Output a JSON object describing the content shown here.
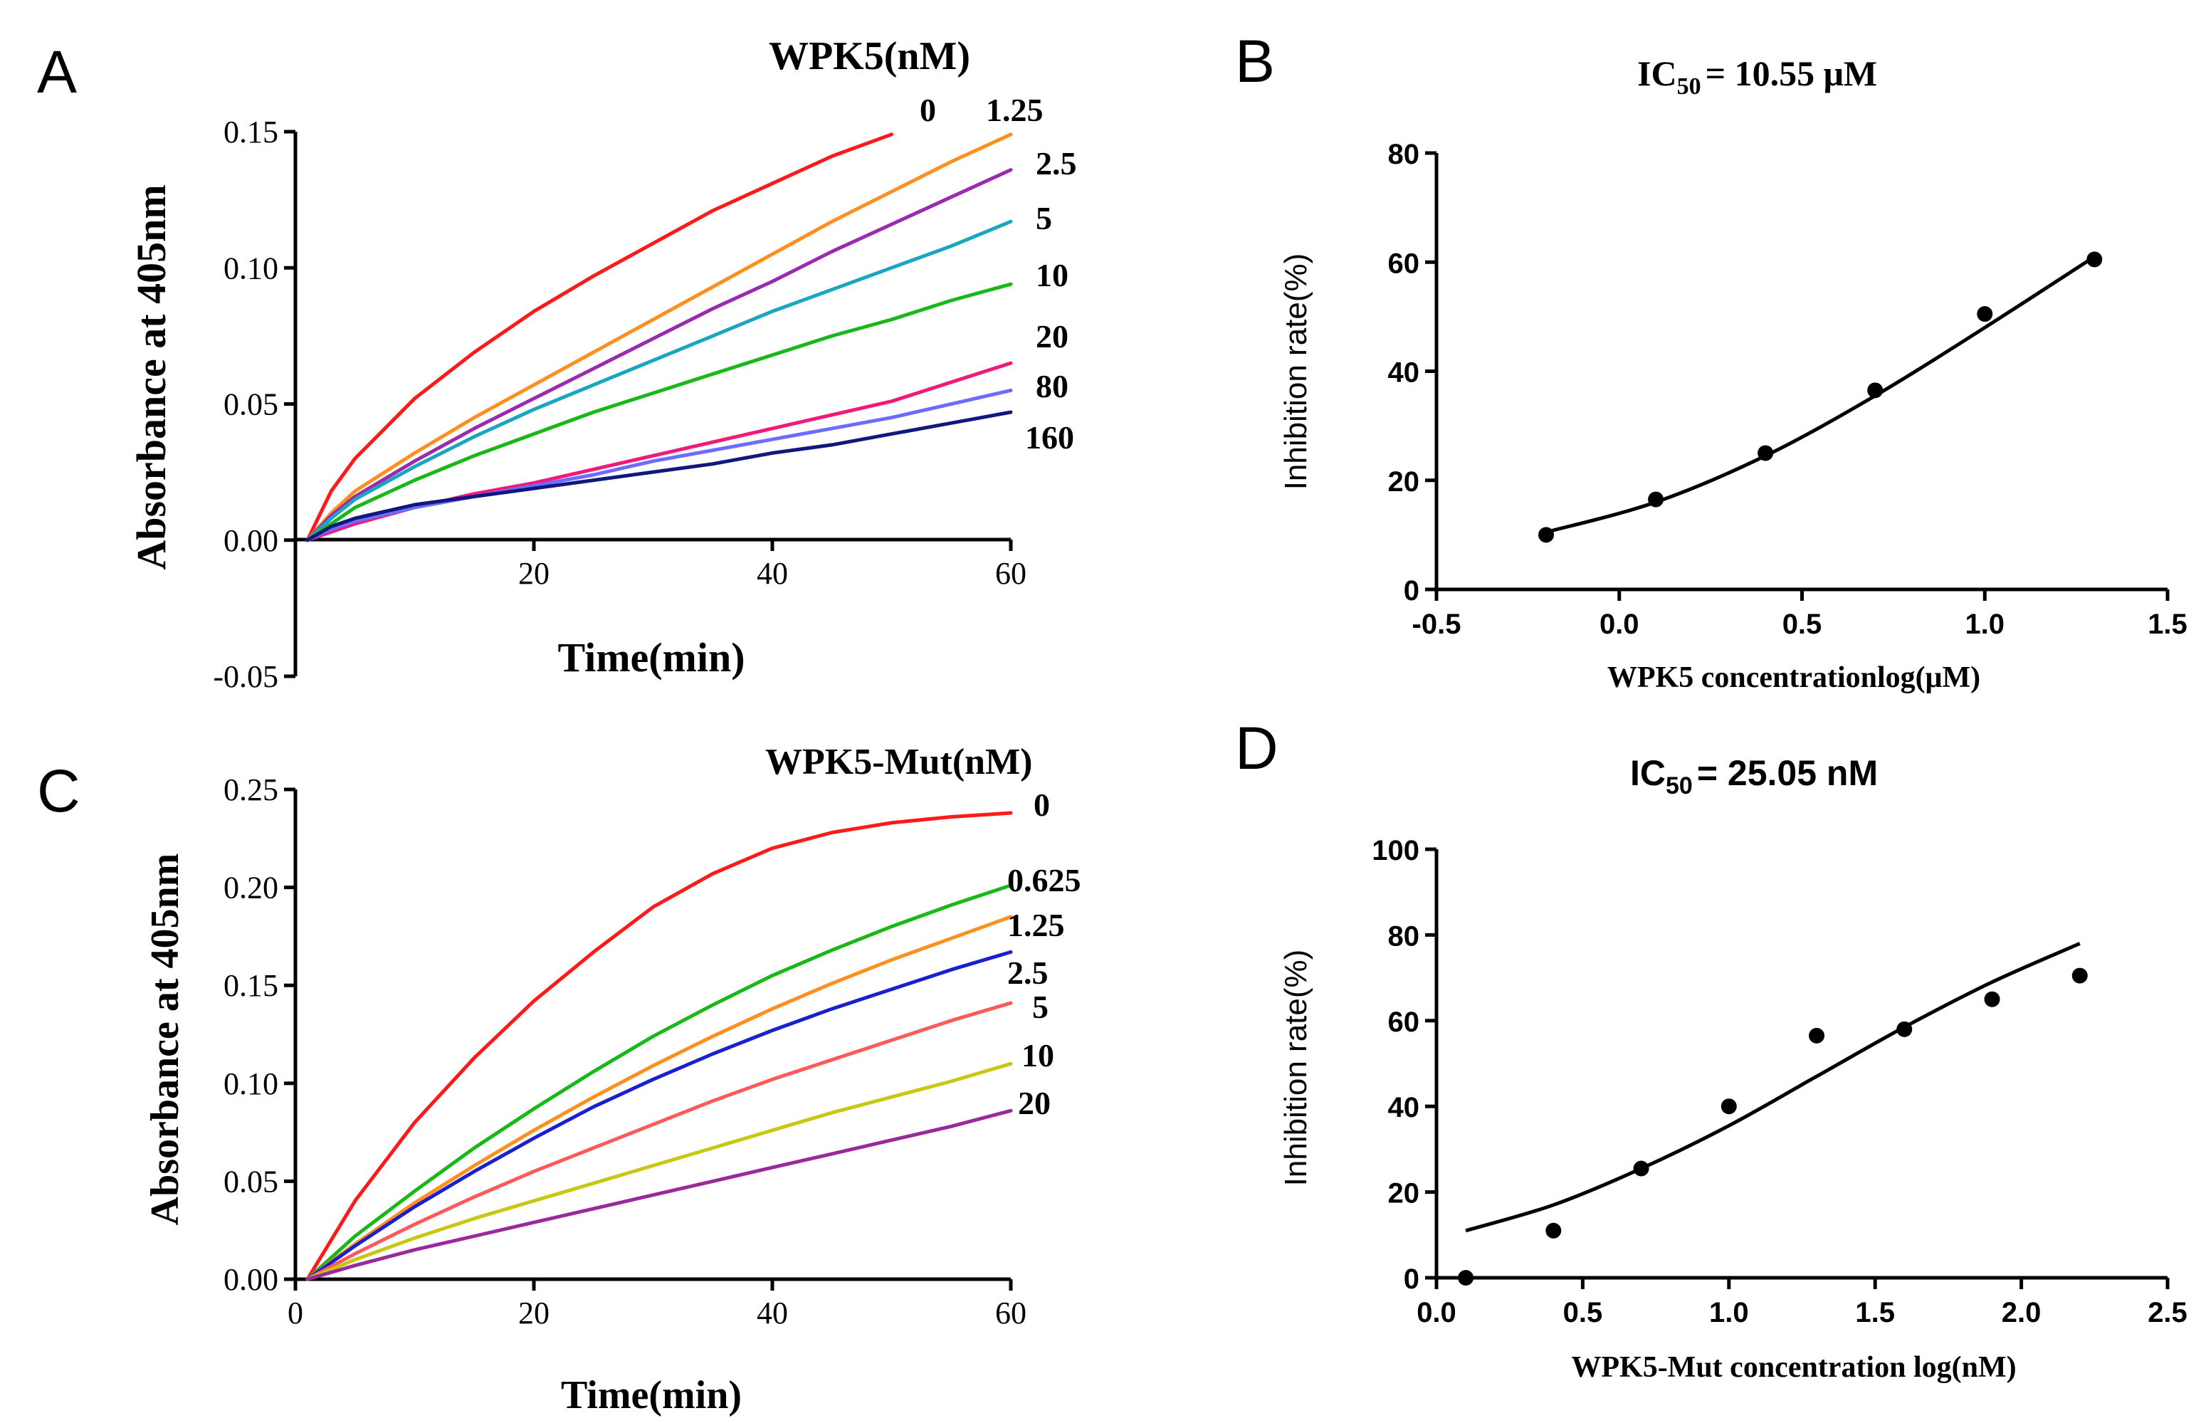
{
  "chart_data": [
    {
      "panel": "A",
      "type": "line",
      "legend_title": "WPK5(nM)",
      "xlabel": "Time(min)",
      "ylabel": "Absorbance at 405nm",
      "xlim": [
        0,
        60
      ],
      "ylim": [
        -0.05,
        0.15
      ],
      "xticks": [
        20,
        40,
        60
      ],
      "xtick_labels": [
        "20",
        "40",
        "60"
      ],
      "yticks": [
        -0.05,
        0,
        0.05,
        0.1,
        0.15
      ],
      "ytick_labels": [
        "-0.05",
        "0.00",
        "0.05",
        "0.10",
        "0.15"
      ],
      "series": [
        {
          "name": "0",
          "color": "#ff1a1a",
          "x": [
            1,
            3,
            5,
            10,
            15,
            20,
            25,
            30,
            35,
            40,
            45,
            50
          ],
          "values": [
            0,
            0.018,
            0.03,
            0.052,
            0.069,
            0.084,
            0.097,
            0.109,
            0.121,
            0.131,
            0.141,
            0.149
          ]
        },
        {
          "name": "1.25",
          "color": "#ff9020",
          "x": [
            1,
            3,
            5,
            10,
            15,
            20,
            25,
            30,
            35,
            40,
            45,
            50,
            55,
            60
          ],
          "values": [
            0,
            0.01,
            0.018,
            0.032,
            0.045,
            0.057,
            0.069,
            0.081,
            0.093,
            0.105,
            0.117,
            0.128,
            0.139,
            0.149
          ]
        },
        {
          "name": "2.5",
          "color": "#9a2ab0",
          "x": [
            1,
            3,
            5,
            10,
            15,
            20,
            25,
            30,
            35,
            40,
            45,
            50,
            55,
            60
          ],
          "values": [
            0,
            0.009,
            0.016,
            0.029,
            0.041,
            0.052,
            0.063,
            0.074,
            0.085,
            0.095,
            0.106,
            0.116,
            0.126,
            0.136
          ]
        },
        {
          "name": "5",
          "color": "#1aa6c0",
          "x": [
            1,
            3,
            5,
            10,
            15,
            20,
            25,
            30,
            35,
            40,
            45,
            50,
            55,
            60
          ],
          "values": [
            0,
            0.008,
            0.015,
            0.027,
            0.038,
            0.048,
            0.057,
            0.066,
            0.075,
            0.084,
            0.092,
            0.1,
            0.108,
            0.117
          ]
        },
        {
          "name": "10",
          "color": "#18b818",
          "x": [
            1,
            3,
            5,
            10,
            15,
            20,
            25,
            30,
            35,
            40,
            45,
            50,
            55,
            60
          ],
          "values": [
            0,
            0.006,
            0.012,
            0.022,
            0.031,
            0.039,
            0.047,
            0.054,
            0.061,
            0.068,
            0.075,
            0.081,
            0.088,
            0.094
          ]
        },
        {
          "name": "20",
          "color": "#f01a7a",
          "x": [
            1,
            3,
            5,
            10,
            15,
            20,
            25,
            30,
            35,
            40,
            45,
            50,
            55,
            60
          ],
          "values": [
            0,
            0.003,
            0.006,
            0.012,
            0.017,
            0.021,
            0.026,
            0.031,
            0.036,
            0.041,
            0.046,
            0.051,
            0.058,
            0.065
          ]
        },
        {
          "name": "80",
          "color": "#6c6cff",
          "x": [
            1,
            3,
            5,
            10,
            15,
            20,
            25,
            30,
            35,
            40,
            45,
            50,
            55,
            60
          ],
          "values": [
            0,
            0.004,
            0.007,
            0.012,
            0.016,
            0.02,
            0.024,
            0.029,
            0.033,
            0.037,
            0.041,
            0.045,
            0.05,
            0.055
          ]
        },
        {
          "name": "160",
          "color": "#101880",
          "x": [
            1,
            3,
            5,
            10,
            15,
            20,
            25,
            30,
            35,
            40,
            45,
            50,
            55,
            60
          ],
          "values": [
            0,
            0.005,
            0.008,
            0.013,
            0.016,
            0.019,
            0.022,
            0.025,
            0.028,
            0.032,
            0.035,
            0.039,
            0.043,
            0.047
          ]
        }
      ]
    },
    {
      "panel": "B",
      "type": "scatter",
      "title": "IC",
      "title_sub": "50",
      "title_rest": "= 10.55 μM",
      "xlabel": "WPK5 concentrationlog(μM)",
      "ylabel": "Inhibition rate(%)",
      "xlim": [
        -0.5,
        1.5
      ],
      "ylim": [
        0,
        80
      ],
      "xticks": [
        -0.5,
        0,
        0.5,
        1,
        1.5
      ],
      "xtick_labels": [
        "-0.5",
        "0.0",
        "0.5",
        "1.0",
        "1.5"
      ],
      "yticks": [
        0,
        20,
        40,
        60,
        80
      ],
      "ytick_labels": [
        "0",
        "20",
        "40",
        "60",
        "80"
      ],
      "points": {
        "x": [
          -0.2,
          0.1,
          0.4,
          0.7,
          1.0,
          1.3
        ],
        "y": [
          10,
          16.5,
          25,
          36.5,
          50.5,
          60.5
        ]
      },
      "fit": {
        "x": [
          -0.2,
          0.1,
          0.4,
          0.7,
          1.0,
          1.3
        ],
        "y": [
          10.5,
          16.0,
          24.5,
          35.5,
          48.0,
          61.0
        ]
      }
    },
    {
      "panel": "C",
      "type": "line",
      "legend_title": "WPK5-Mut(nM)",
      "xlabel": "Time(min)",
      "ylabel": "Absorbance at 405nm",
      "xlim": [
        0,
        60
      ],
      "ylim": [
        0,
        0.25
      ],
      "xticks": [
        0,
        20,
        40,
        60
      ],
      "xtick_labels": [
        "0",
        "20",
        "40",
        "60"
      ],
      "yticks": [
        0,
        0.05,
        0.1,
        0.15,
        0.2,
        0.25
      ],
      "ytick_labels": [
        "0.00",
        "0.05",
        "0.10",
        "0.15",
        "0.20",
        "0.25"
      ],
      "series": [
        {
          "name": "0",
          "color": "#ff1a1a",
          "x": [
            1,
            5,
            10,
            15,
            20,
            25,
            30,
            35,
            40,
            45,
            50,
            55,
            60
          ],
          "values": [
            0,
            0.04,
            0.08,
            0.113,
            0.142,
            0.167,
            0.19,
            0.207,
            0.22,
            0.228,
            0.233,
            0.236,
            0.238
          ]
        },
        {
          "name": "0.625",
          "color": "#18b818",
          "x": [
            1,
            5,
            10,
            15,
            20,
            25,
            30,
            35,
            40,
            45,
            50,
            55,
            60
          ],
          "values": [
            0,
            0.022,
            0.045,
            0.067,
            0.087,
            0.106,
            0.124,
            0.14,
            0.155,
            0.168,
            0.18,
            0.191,
            0.201
          ]
        },
        {
          "name": "1.25",
          "color": "#ff9020",
          "x": [
            1,
            5,
            10,
            15,
            20,
            25,
            30,
            35,
            40,
            45,
            50,
            55,
            60
          ],
          "values": [
            0,
            0.018,
            0.039,
            0.058,
            0.076,
            0.093,
            0.109,
            0.124,
            0.138,
            0.151,
            0.163,
            0.174,
            0.185
          ]
        },
        {
          "name": "2.5",
          "color": "#1a20d0",
          "x": [
            1,
            5,
            10,
            15,
            20,
            25,
            30,
            35,
            40,
            45,
            50,
            55,
            60
          ],
          "values": [
            0,
            0.017,
            0.037,
            0.055,
            0.072,
            0.088,
            0.102,
            0.115,
            0.127,
            0.138,
            0.148,
            0.158,
            0.167
          ]
        },
        {
          "name": "5",
          "color": "#ff5a5a",
          "x": [
            1,
            5,
            10,
            15,
            20,
            25,
            30,
            35,
            40,
            45,
            50,
            55,
            60
          ],
          "values": [
            0,
            0.013,
            0.028,
            0.042,
            0.055,
            0.067,
            0.079,
            0.091,
            0.102,
            0.112,
            0.122,
            0.132,
            0.141
          ]
        },
        {
          "name": "10",
          "color": "#c8c814",
          "x": [
            1,
            5,
            10,
            15,
            20,
            25,
            30,
            35,
            40,
            45,
            50,
            55,
            60
          ],
          "values": [
            0,
            0.01,
            0.021,
            0.031,
            0.04,
            0.049,
            0.058,
            0.067,
            0.076,
            0.085,
            0.093,
            0.101,
            0.11
          ]
        },
        {
          "name": "20",
          "color": "#9a2a9a",
          "x": [
            1,
            5,
            10,
            15,
            20,
            25,
            30,
            35,
            40,
            45,
            50,
            55,
            60
          ],
          "values": [
            0,
            0.007,
            0.015,
            0.022,
            0.029,
            0.036,
            0.043,
            0.05,
            0.057,
            0.064,
            0.071,
            0.078,
            0.086
          ]
        }
      ]
    },
    {
      "panel": "D",
      "type": "scatter",
      "title": "IC",
      "title_sub": "50",
      "title_rest": "= 25.05 nM",
      "xlabel": "WPK5-Mut concentration log(nM)",
      "ylabel": "Inhibition rate(%)",
      "xlim": [
        0,
        2.5
      ],
      "ylim": [
        0,
        100
      ],
      "xticks": [
        0,
        0.5,
        1,
        1.5,
        2,
        2.5
      ],
      "xtick_labels": [
        "0.0",
        "0.5",
        "1.0",
        "1.5",
        "2.0",
        "2.5"
      ],
      "yticks": [
        0,
        20,
        40,
        60,
        80,
        100
      ],
      "ytick_labels": [
        "0",
        "20",
        "40",
        "60",
        "80",
        "100"
      ],
      "points": {
        "x": [
          0.1,
          0.4,
          0.7,
          1.0,
          1.3,
          1.6,
          1.9,
          2.2
        ],
        "y": [
          0,
          11,
          25.5,
          40,
          56.5,
          58,
          65,
          70.5
        ]
      },
      "fit": {
        "x": [
          0.1,
          0.4,
          0.7,
          1.0,
          1.3,
          1.6,
          1.9,
          2.2
        ],
        "y": [
          11,
          17,
          25.5,
          35.5,
          47,
          58.5,
          69,
          78
        ]
      }
    }
  ],
  "panels": [
    "A",
    "B",
    "C",
    "D"
  ]
}
